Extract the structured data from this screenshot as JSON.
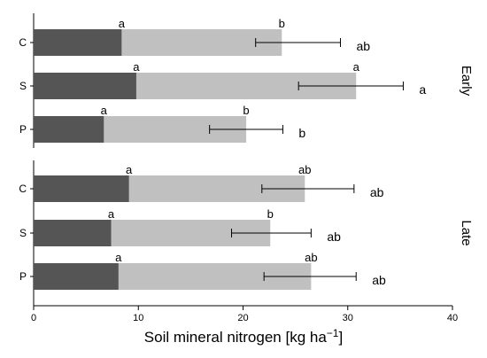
{
  "chart_data": {
    "type": "bar",
    "orientation": "horizontal",
    "stacked": true,
    "xlabel": "Soil mineral nitrogen [kg ha",
    "xlabel_sup": "−1",
    "xlabel_close": "]",
    "xlim": [
      0,
      40
    ],
    "xticks": [
      0,
      10,
      20,
      30,
      40
    ],
    "colors": {
      "dark": "#555555",
      "light": "#c0c0c0",
      "line": "#000000"
    },
    "groups": [
      {
        "name": "Early",
        "rows": [
          {
            "category": "C",
            "dark": 8.4,
            "total": 23.7,
            "err": [
              21.2,
              29.3
            ],
            "dark_letter": "a",
            "light_letter": "b",
            "total_letter": "ab"
          },
          {
            "category": "S",
            "dark": 9.8,
            "total": 30.8,
            "err": [
              25.3,
              35.3
            ],
            "dark_letter": "a",
            "light_letter": "a",
            "total_letter": "a"
          },
          {
            "category": "P",
            "dark": 6.7,
            "total": 20.3,
            "err": [
              16.8,
              23.8
            ],
            "dark_letter": "a",
            "light_letter": "b",
            "total_letter": "b"
          }
        ]
      },
      {
        "name": "Late",
        "rows": [
          {
            "category": "C",
            "dark": 9.1,
            "total": 25.9,
            "err": [
              21.8,
              30.6
            ],
            "dark_letter": "a",
            "light_letter": "ab",
            "total_letter": "ab"
          },
          {
            "category": "S",
            "dark": 7.4,
            "total": 22.6,
            "err": [
              18.9,
              26.5
            ],
            "dark_letter": "a",
            "light_letter": "b",
            "total_letter": "ab"
          },
          {
            "category": "P",
            "dark": 8.1,
            "total": 26.5,
            "err": [
              22.0,
              30.8
            ],
            "dark_letter": "a",
            "light_letter": "ab",
            "total_letter": "ab"
          }
        ]
      }
    ]
  }
}
